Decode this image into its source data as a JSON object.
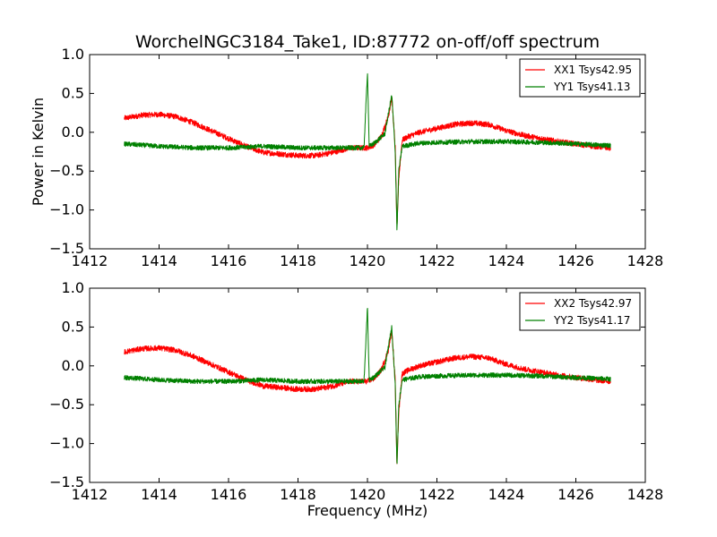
{
  "title": "WorchelNGC3184_Take1, ID:87772 on-off/off spectrum",
  "chart_data": [
    {
      "type": "line",
      "ylabel": "Power in Kelvin",
      "xlabel": "",
      "xlim": [
        1412,
        1428
      ],
      "ylim": [
        -1.5,
        1.0
      ],
      "x_ticks": [
        "1412",
        "1414",
        "1416",
        "1418",
        "1420",
        "1422",
        "1424",
        "1426",
        "1428"
      ],
      "y_ticks": [
        "1.0",
        "0.5",
        "0.0",
        "−0.5",
        "−1.0",
        "−1.5"
      ],
      "grid": false,
      "legend_position": "top-right",
      "series": [
        {
          "name": "XX1 Tsys42.95",
          "color": "#ff0000",
          "x": [
            1413.0,
            1413.5,
            1414.0,
            1414.5,
            1415.0,
            1415.5,
            1416.0,
            1416.5,
            1417.0,
            1417.5,
            1418.0,
            1418.5,
            1419.0,
            1419.5,
            1420.0,
            1420.2,
            1420.4,
            1420.6,
            1420.7,
            1420.8,
            1420.85,
            1420.9,
            1421.0,
            1421.2,
            1421.5,
            1422.0,
            1422.5,
            1423.0,
            1423.5,
            1424.0,
            1424.5,
            1425.0,
            1425.5,
            1426.0,
            1426.5,
            1427.0
          ],
          "y": [
            0.18,
            0.22,
            0.23,
            0.2,
            0.12,
            0.02,
            -0.08,
            -0.18,
            -0.26,
            -0.28,
            -0.3,
            -0.3,
            -0.26,
            -0.2,
            -0.2,
            -0.16,
            -0.05,
            0.2,
            0.45,
            -0.2,
            -1.25,
            -0.6,
            -0.1,
            -0.05,
            0.0,
            0.05,
            0.1,
            0.12,
            0.1,
            0.02,
            -0.04,
            -0.08,
            -0.12,
            -0.15,
            -0.18,
            -0.2
          ]
        },
        {
          "name": "YY1 Tsys41.13",
          "color": "#008000",
          "x": [
            1413.0,
            1414.0,
            1415.0,
            1416.0,
            1417.0,
            1418.0,
            1419.0,
            1419.9,
            1420.0,
            1420.05,
            1420.2,
            1420.5,
            1420.7,
            1420.8,
            1420.85,
            1420.9,
            1421.0,
            1421.5,
            1422.0,
            1423.0,
            1424.0,
            1425.0,
            1426.0,
            1427.0
          ],
          "y": [
            -0.15,
            -0.18,
            -0.2,
            -0.2,
            -0.18,
            -0.2,
            -0.2,
            -0.2,
            0.78,
            -0.18,
            -0.14,
            -0.02,
            0.48,
            -0.25,
            -1.28,
            -0.5,
            -0.18,
            -0.14,
            -0.13,
            -0.12,
            -0.12,
            -0.13,
            -0.15,
            -0.17
          ]
        }
      ]
    },
    {
      "type": "line",
      "ylabel": "",
      "xlabel": "Frequency (MHz)",
      "xlim": [
        1412,
        1428
      ],
      "ylim": [
        -1.5,
        1.0
      ],
      "x_ticks": [
        "1412",
        "1414",
        "1416",
        "1418",
        "1420",
        "1422",
        "1424",
        "1426",
        "1428"
      ],
      "y_ticks": [
        "1.0",
        "0.5",
        "0.0",
        "−0.5",
        "−1.0",
        "−1.5"
      ],
      "grid": false,
      "legend_position": "top-right",
      "series": [
        {
          "name": "XX2 Tsys42.97",
          "color": "#ff0000",
          "x": [
            1413.0,
            1413.5,
            1414.0,
            1414.5,
            1415.0,
            1415.5,
            1416.0,
            1416.5,
            1417.0,
            1417.5,
            1418.0,
            1418.5,
            1419.0,
            1419.5,
            1420.0,
            1420.2,
            1420.4,
            1420.6,
            1420.7,
            1420.8,
            1420.85,
            1420.9,
            1421.0,
            1421.2,
            1421.5,
            1422.0,
            1422.5,
            1423.0,
            1423.5,
            1424.0,
            1424.5,
            1425.0,
            1425.5,
            1426.0,
            1426.5,
            1427.0
          ],
          "y": [
            0.18,
            0.22,
            0.23,
            0.2,
            0.12,
            0.02,
            -0.08,
            -0.18,
            -0.26,
            -0.28,
            -0.3,
            -0.3,
            -0.26,
            -0.2,
            -0.2,
            -0.16,
            -0.05,
            0.2,
            0.45,
            -0.2,
            -1.28,
            -0.6,
            -0.1,
            -0.05,
            0.0,
            0.05,
            0.1,
            0.12,
            0.1,
            0.02,
            -0.04,
            -0.08,
            -0.12,
            -0.15,
            -0.18,
            -0.2
          ]
        },
        {
          "name": "YY2 Tsys41.17",
          "color": "#008000",
          "x": [
            1413.0,
            1414.0,
            1415.0,
            1416.0,
            1417.0,
            1418.0,
            1419.0,
            1419.9,
            1420.0,
            1420.05,
            1420.2,
            1420.5,
            1420.7,
            1420.8,
            1420.85,
            1420.9,
            1421.0,
            1421.5,
            1422.0,
            1423.0,
            1424.0,
            1425.0,
            1426.0,
            1427.0
          ],
          "y": [
            -0.15,
            -0.18,
            -0.2,
            -0.2,
            -0.18,
            -0.2,
            -0.2,
            -0.2,
            0.75,
            -0.18,
            -0.14,
            -0.02,
            0.5,
            -0.25,
            -1.3,
            -0.5,
            -0.18,
            -0.14,
            -0.13,
            -0.12,
            -0.12,
            -0.13,
            -0.15,
            -0.17
          ]
        }
      ]
    }
  ]
}
